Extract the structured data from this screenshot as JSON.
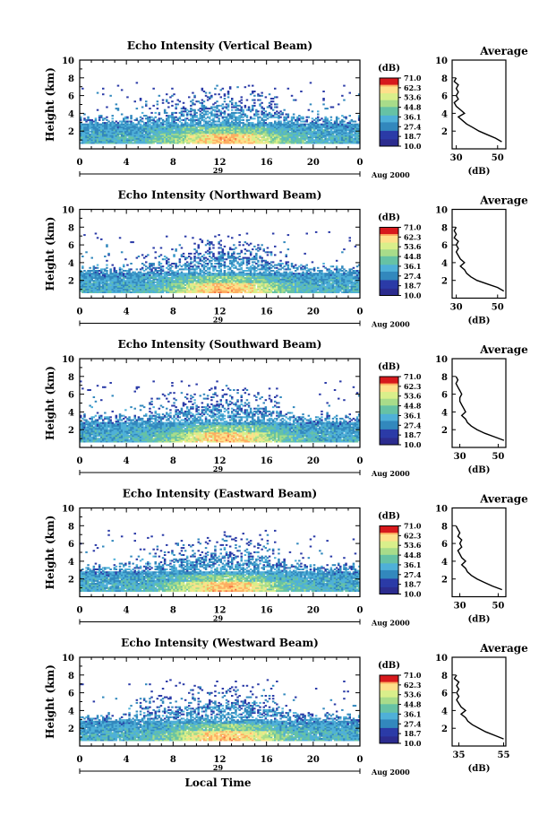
{
  "colorbar": {
    "unit": "(dB)",
    "levels": [
      "71.0",
      "62.3",
      "53.6",
      "44.8",
      "36.1",
      "27.4",
      "18.7",
      "10.0"
    ],
    "colors": [
      "#d7191c",
      "#f46d43",
      "#fdae61",
      "#fee08b",
      "#d9ef8b",
      "#66c2a5",
      "#3288bd",
      "#2b3ba7",
      "#2c2c8f"
    ]
  },
  "xaxis": {
    "ticks": [
      "0",
      "4",
      "8",
      "12",
      "16",
      "20",
      "0"
    ],
    "day": "29",
    "month_year": "Aug 2000",
    "label": "Local Time"
  },
  "yaxis": {
    "label": "Height (km)",
    "ticks": [
      "2",
      "4",
      "6",
      "8",
      "10"
    ]
  },
  "chart_data": [
    {
      "type": "heatmap",
      "title": "Echo Intensity (Vertical Beam)",
      "x_range_hours": [
        0,
        24
      ],
      "y_range_km": [
        0,
        10
      ],
      "profile": {
        "title": "Average",
        "xlabel": "(dB)",
        "xticks": [
          "30",
          "50"
        ],
        "xlim": [
          28,
          54
        ],
        "heights_km": [
          0.8,
          1.2,
          1.6,
          2.0,
          2.4,
          2.8,
          3.2,
          3.6,
          4.0,
          4.4,
          4.8,
          5.2,
          5.6,
          6.0,
          6.4,
          6.8,
          7.2,
          7.6,
          8.0
        ],
        "values_db": [
          52,
          49,
          45,
          41,
          38,
          35,
          33,
          31,
          34,
          32,
          30,
          29,
          31,
          30,
          31,
          30,
          31,
          29,
          30
        ]
      }
    },
    {
      "type": "heatmap",
      "title": "Echo Intensity (Northward Beam)",
      "x_range_hours": [
        0,
        24
      ],
      "y_range_km": [
        0,
        10
      ],
      "profile": {
        "title": "Average",
        "xlabel": "(dB)",
        "xticks": [
          "30",
          "50"
        ],
        "xlim": [
          28,
          54
        ],
        "heights_km": [
          0.8,
          1.2,
          1.6,
          2.0,
          2.4,
          2.8,
          3.2,
          3.6,
          4.0,
          4.4,
          4.8,
          5.2,
          5.6,
          6.0,
          6.4,
          6.8,
          7.2,
          7.6,
          8.0
        ],
        "values_db": [
          53,
          50,
          45,
          40,
          37,
          35,
          34,
          32,
          34,
          32,
          31,
          30,
          31,
          30,
          31,
          29,
          30,
          29,
          30
        ]
      }
    },
    {
      "type": "heatmap",
      "title": "Echo Intensity (Southward Beam)",
      "x_range_hours": [
        0,
        24
      ],
      "y_range_km": [
        0,
        10
      ],
      "profile": {
        "title": "Average",
        "xlabel": "(dB)",
        "xticks": [
          "30",
          "50"
        ],
        "xlim": [
          26,
          54
        ],
        "heights_km": [
          0.8,
          1.2,
          1.6,
          2.0,
          2.4,
          2.8,
          3.2,
          3.6,
          4.0,
          4.4,
          4.8,
          5.2,
          5.6,
          6.0,
          6.4,
          6.8,
          7.2,
          7.6,
          8.0
        ],
        "values_db": [
          53,
          48,
          43,
          39,
          36,
          34,
          33,
          31,
          33,
          32,
          31,
          30,
          30,
          31,
          30,
          29,
          28,
          29,
          28
        ]
      }
    },
    {
      "type": "heatmap",
      "title": "Echo Intensity (Eastward Beam)",
      "x_range_hours": [
        0,
        24
      ],
      "y_range_km": [
        0,
        10
      ],
      "profile": {
        "title": "Average",
        "xlabel": "(dB)",
        "xticks": [
          "30",
          "50"
        ],
        "xlim": [
          26,
          54
        ],
        "heights_km": [
          0.8,
          1.2,
          1.6,
          2.0,
          2.4,
          2.8,
          3.2,
          3.6,
          4.0,
          4.4,
          4.8,
          5.2,
          5.6,
          6.0,
          6.4,
          6.8,
          7.2,
          7.6,
          8.0
        ],
        "values_db": [
          52,
          47,
          43,
          39,
          36,
          34,
          33,
          31,
          33,
          31,
          30,
          29,
          31,
          30,
          31,
          29,
          30,
          29,
          28
        ]
      }
    },
    {
      "type": "heatmap",
      "title": "Echo Intensity (Westward Beam)",
      "x_range_hours": [
        0,
        24
      ],
      "y_range_km": [
        0,
        10
      ],
      "profile": {
        "title": "Average",
        "xlabel": "(dB)",
        "xticks": [
          "35",
          "55"
        ],
        "xlim": [
          32,
          56
        ],
        "heights_km": [
          0.8,
          1.2,
          1.6,
          2.0,
          2.4,
          2.8,
          3.2,
          3.6,
          4.0,
          4.4,
          4.8,
          5.2,
          5.6,
          6.0,
          6.4,
          6.8,
          7.2,
          7.6,
          8.0
        ],
        "values_db": [
          55,
          51,
          47,
          44,
          41,
          39,
          38,
          36,
          38,
          36,
          35,
          34,
          35,
          34,
          35,
          34,
          35,
          33,
          34
        ]
      }
    }
  ]
}
